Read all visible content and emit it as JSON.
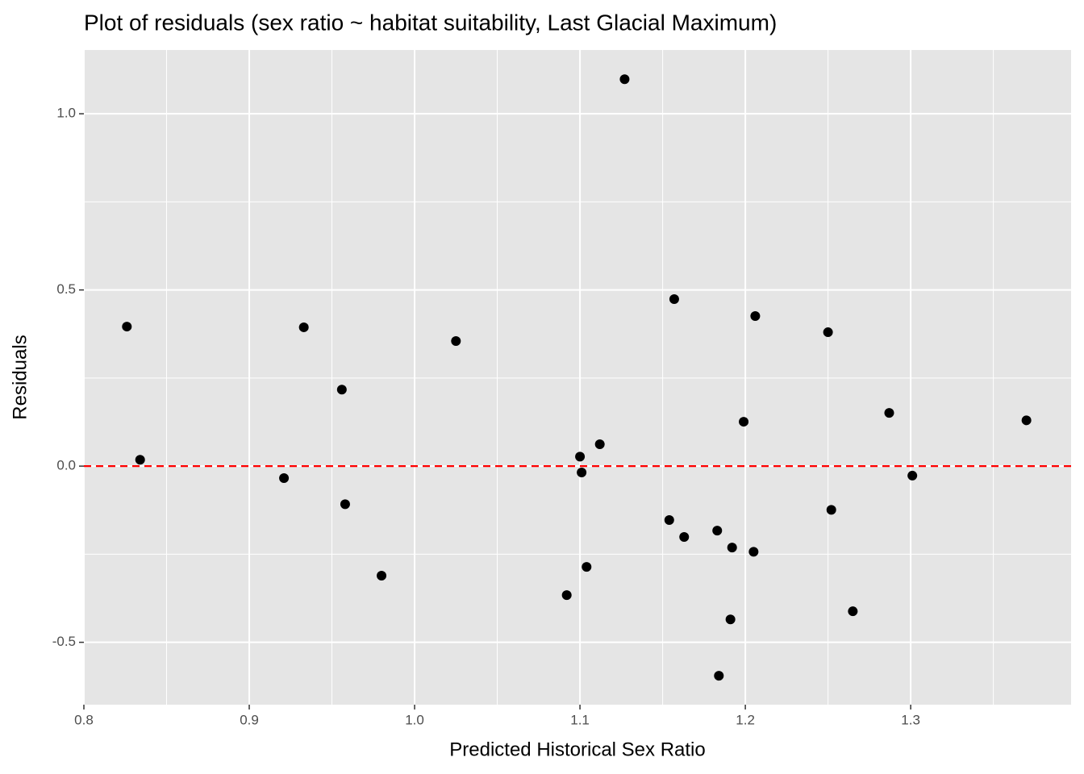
{
  "chart_data": {
    "type": "scatter",
    "title": "Plot of residuals (sex ratio ~ habitat suitability, Last Glacial Maximum)",
    "x_label": "Predicted Historical Sex Ratio",
    "y_label": "Residuals",
    "color": "#000000",
    "hline": 0,
    "hline_color": "#ff0000",
    "grid": true,
    "xlim": [
      0.8,
      1.397
    ],
    "ylim": [
      -0.677,
      1.181
    ],
    "xticks": [
      0.8,
      0.9,
      {
        "value": 1,
        "label": "1.0"
      },
      1.1,
      1.2,
      1.3
    ],
    "yticks": [
      -0.5,
      {
        "value": 0,
        "label": "0.0"
      },
      0.5,
      {
        "value": 1,
        "label": "1.0"
      }
    ],
    "x": [
      0.826,
      0.834,
      0.921,
      0.933,
      0.956,
      0.958,
      0.98,
      1.025,
      1.092,
      1.1,
      1.101,
      1.104,
      1.112,
      1.127,
      1.154,
      1.157,
      1.163,
      1.183,
      1.184,
      1.191,
      1.192,
      1.199,
      1.205,
      1.206,
      1.25,
      1.252,
      1.265,
      1.287,
      1.301,
      1.37
    ],
    "values": [
      0.396,
      0.018,
      -0.034,
      0.394,
      0.217,
      -0.108,
      -0.311,
      0.355,
      -0.366,
      0.027,
      -0.018,
      -0.286,
      0.062,
      1.098,
      -0.153,
      0.474,
      -0.201,
      -0.183,
      -0.595,
      -0.435,
      -0.231,
      0.126,
      -0.243,
      0.426,
      0.38,
      -0.124,
      -0.412,
      0.151,
      -0.027,
      0.13
    ]
  }
}
